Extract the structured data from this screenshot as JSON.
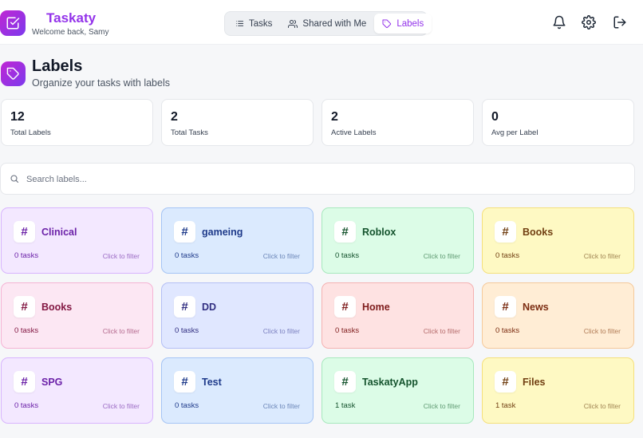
{
  "header": {
    "brand": "Taskaty",
    "welcome": "Welcome back, Samy",
    "nav": [
      {
        "label": "Tasks",
        "icon": "list-icon",
        "active": false
      },
      {
        "label": "Shared with Me",
        "icon": "users-icon",
        "active": false
      },
      {
        "label": "Labels",
        "icon": "tag-icon",
        "active": true
      }
    ],
    "actions": [
      "bell-icon",
      "gear-icon",
      "logout-icon"
    ],
    "accent": "#9333ea"
  },
  "page": {
    "title": "Labels",
    "subtitle": "Organize your tasks with labels"
  },
  "stats": [
    {
      "value": "12",
      "label": "Total Labels"
    },
    {
      "value": "2",
      "label": "Total Tasks"
    },
    {
      "value": "2",
      "label": "Active Labels"
    },
    {
      "value": "0",
      "label": "Avg per Label"
    }
  ],
  "search": {
    "placeholder": "Search labels...",
    "value": ""
  },
  "labels": [
    {
      "name": "Clinical",
      "count": "0 tasks",
      "hint": "Click to filter",
      "theme": "purple"
    },
    {
      "name": "gameing",
      "count": "0 tasks",
      "hint": "Click to filter",
      "theme": "blue"
    },
    {
      "name": "Roblox",
      "count": "0 tasks",
      "hint": "Click to filter",
      "theme": "green"
    },
    {
      "name": "Books",
      "count": "0 tasks",
      "hint": "Click to filter",
      "theme": "yellow"
    },
    {
      "name": "Books",
      "count": "0 tasks",
      "hint": "Click to filter",
      "theme": "pink"
    },
    {
      "name": "DD",
      "count": "0 tasks",
      "hint": "Click to filter",
      "theme": "indigo"
    },
    {
      "name": "Home",
      "count": "0 tasks",
      "hint": "Click to filter",
      "theme": "red"
    },
    {
      "name": "News",
      "count": "0 tasks",
      "hint": "Click to filter",
      "theme": "orange"
    },
    {
      "name": "SPG",
      "count": "0 tasks",
      "hint": "Click to filter",
      "theme": "purple"
    },
    {
      "name": "Test",
      "count": "0 tasks",
      "hint": "Click to filter",
      "theme": "blue"
    },
    {
      "name": "TaskatyApp",
      "count": "1 task",
      "hint": "Click to filter",
      "theme": "green"
    },
    {
      "name": "Files",
      "count": "1 task",
      "hint": "Click to filter",
      "theme": "yellow"
    }
  ],
  "themes": {
    "purple": {
      "bg": "#f3e8ff",
      "border": "#d8b4fe",
      "text": "#6b21a8",
      "muted": "#9b6bc4"
    },
    "blue": {
      "bg": "#dbeafe",
      "border": "#a5c4f5",
      "text": "#1e3a8a",
      "muted": "#6b86b8"
    },
    "green": {
      "bg": "#dcfce7",
      "border": "#a7e8bd",
      "text": "#14532d",
      "muted": "#5f9a72"
    },
    "yellow": {
      "bg": "#fef9c3",
      "border": "#f5e07a",
      "text": "#713f12",
      "muted": "#a08452"
    },
    "pink": {
      "bg": "#fce7f3",
      "border": "#f5b3d4",
      "text": "#831843",
      "muted": "#b46a8e"
    },
    "indigo": {
      "bg": "#e0e7ff",
      "border": "#b4bff5",
      "text": "#312e81",
      "muted": "#7a7fbf"
    },
    "red": {
      "bg": "#fee2e2",
      "border": "#f5b1b1",
      "text": "#7f1d1d",
      "muted": "#b46a6a"
    },
    "orange": {
      "bg": "#ffedd5",
      "border": "#f5c99a",
      "text": "#7c2d12",
      "muted": "#b07a55"
    }
  }
}
